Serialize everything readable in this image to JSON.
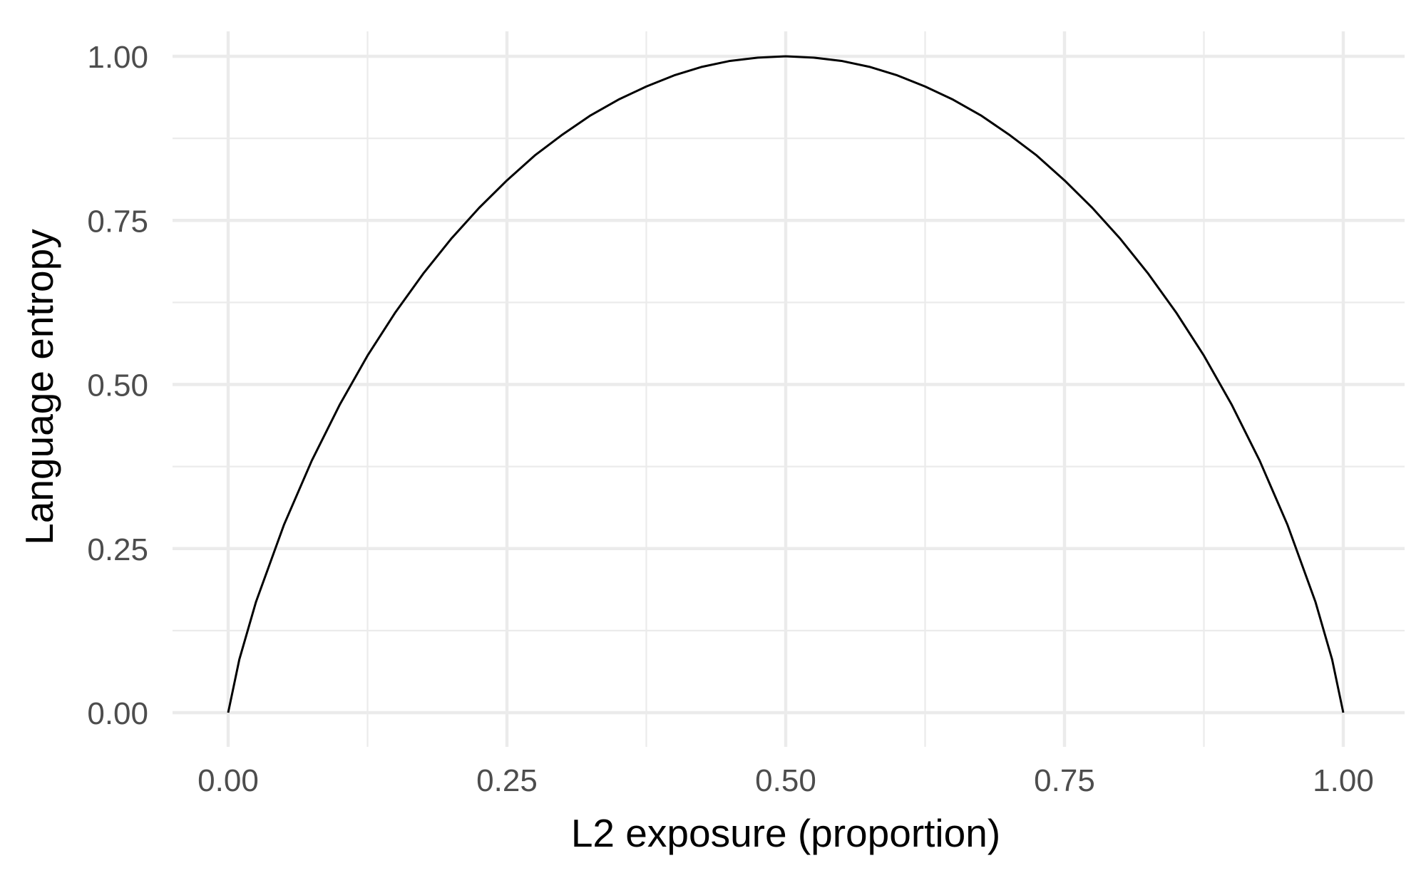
{
  "chart_data": {
    "type": "line",
    "title": "",
    "xlabel": "L2 exposure (proportion)",
    "ylabel": "Language entropy",
    "xlim": [
      0,
      1
    ],
    "ylim": [
      0,
      1
    ],
    "x_ticks": [
      0,
      0.25,
      0.5,
      0.75,
      1
    ],
    "x_tick_labels": [
      "0.00",
      "0.25",
      "0.50",
      "0.75",
      "1.00"
    ],
    "y_ticks": [
      0,
      0.25,
      0.5,
      0.75,
      1
    ],
    "y_tick_labels": [
      "0.00",
      "0.25",
      "0.50",
      "0.75",
      "1.00"
    ],
    "grid": true,
    "legend": "none",
    "colors": {
      "line": "#000000",
      "grid": "#ebebeb",
      "tick_text": "#4d4d4d",
      "background": "#ffffff"
    },
    "series": [
      {
        "x": [
          0,
          0.01,
          0.025,
          0.05,
          0.075,
          0.1,
          0.125,
          0.15,
          0.175,
          0.2,
          0.225,
          0.25,
          0.275,
          0.3,
          0.325,
          0.35,
          0.375,
          0.4,
          0.425,
          0.45,
          0.475,
          0.5,
          0.525,
          0.55,
          0.575,
          0.6,
          0.625,
          0.65,
          0.675,
          0.7,
          0.725,
          0.75,
          0.775,
          0.8,
          0.825,
          0.85,
          0.875,
          0.9,
          0.925,
          0.95,
          0.975,
          0.99,
          1
        ],
        "y": [
          0,
          0.081,
          0.169,
          0.286,
          0.384,
          0.469,
          0.544,
          0.61,
          0.669,
          0.722,
          0.769,
          0.811,
          0.849,
          0.881,
          0.91,
          0.934,
          0.954,
          0.971,
          0.984,
          0.993,
          0.998,
          1,
          0.998,
          0.993,
          0.984,
          0.971,
          0.954,
          0.934,
          0.91,
          0.881,
          0.849,
          0.811,
          0.769,
          0.722,
          0.669,
          0.61,
          0.544,
          0.469,
          0.384,
          0.286,
          0.169,
          0.081,
          0
        ]
      }
    ]
  }
}
